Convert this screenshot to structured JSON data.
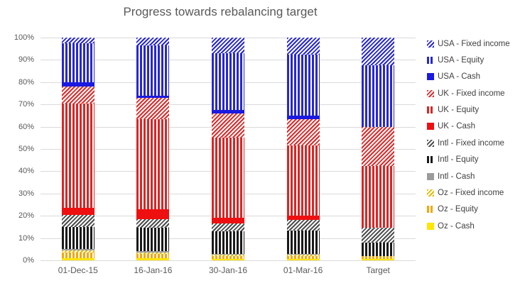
{
  "title": "Progress towards rebalancing target",
  "axis": {
    "y_ticks": [
      "100%",
      "90%",
      "80%",
      "70%",
      "60%",
      "50%",
      "40%",
      "30%",
      "20%",
      "10%",
      "0%"
    ],
    "x_labels": [
      "01-Dec-15",
      "16-Jan-16",
      "30-Jan-16",
      "01-Mar-16",
      "Target"
    ]
  },
  "colors": {
    "grid": "#dadada",
    "axis_text": "#595959",
    "title_text": "#595959",
    "legend_text": "#404040"
  },
  "chart_data": {
    "type": "bar",
    "stacked": true,
    "percent_stacked": true,
    "title": "Progress towards rebalancing target",
    "xlabel": "",
    "ylabel": "",
    "ylim": [
      0,
      100
    ],
    "grid": true,
    "legend_position": "right",
    "categories": [
      "01-Dec-15",
      "16-Jan-16",
      "30-Jan-16",
      "01-Mar-16",
      "Target"
    ],
    "series": [
      {
        "name": "USA - Fixed income",
        "pattern": "diagonal",
        "color": "#2727d3",
        "values": [
          2.5,
          3.5,
          7,
          7.5,
          12.5
        ]
      },
      {
        "name": "USA - Equity",
        "pattern": "vertical",
        "color": "#2727d3",
        "values": [
          17.5,
          22.5,
          25.5,
          27.5,
          27.5
        ]
      },
      {
        "name": "USA - Cash",
        "pattern": "solid",
        "color": "#1a1ae0",
        "values": [
          2,
          1,
          1.5,
          1.5,
          0
        ]
      },
      {
        "name": "UK - Fixed income",
        "pattern": "diagonal",
        "color": "#e02a2a",
        "values": [
          7.5,
          9.5,
          11,
          12,
          17.5
        ]
      },
      {
        "name": "UK - Equity",
        "pattern": "vertical",
        "color": "#db2525",
        "values": [
          47,
          40.5,
          36,
          31.5,
          28
        ]
      },
      {
        "name": "UK - Cash",
        "pattern": "solid",
        "color": "#ee1010",
        "values": [
          3,
          4.5,
          2.5,
          2,
          0
        ]
      },
      {
        "name": "Intl - Fixed income",
        "pattern": "diagonal",
        "color": "#4d4d4d",
        "values": [
          5.5,
          4,
          3.5,
          4.5,
          6.5
        ]
      },
      {
        "name": "Intl - Equity",
        "pattern": "vertical",
        "color": "#1a1a1a",
        "values": [
          10,
          10.5,
          10,
          10.5,
          6
        ]
      },
      {
        "name": "Intl - Cash",
        "pattern": "solid",
        "color": "#9b9b9b",
        "values": [
          0.5,
          0.5,
          0.5,
          0.5,
          0
        ]
      },
      {
        "name": "Oz - Fixed income",
        "pattern": "diagonal",
        "color": "#e5b800",
        "values": [
          1,
          0.5,
          0.5,
          0.5,
          0
        ]
      },
      {
        "name": "Oz - Equity",
        "pattern": "vertical",
        "color": "#f7a600",
        "values": [
          2.5,
          2,
          1.5,
          1.5,
          1.5
        ]
      },
      {
        "name": "Oz - Cash",
        "pattern": "solid",
        "color": "#ffe500",
        "values": [
          1,
          1,
          0.5,
          0.5,
          0.5
        ]
      }
    ]
  }
}
